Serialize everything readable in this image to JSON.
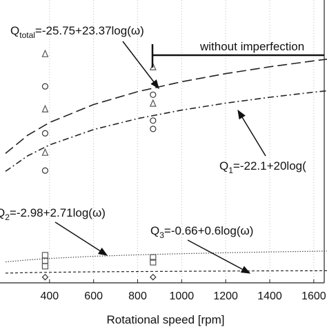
{
  "chart_data": {
    "type": "line",
    "x_label": "Rotational speed [rpm]",
    "xlim": [
      175,
      1660
    ],
    "ylim": [
      -1.5,
      63
    ],
    "xticks": [
      400,
      600,
      800,
      1000,
      1200,
      1400,
      1600
    ],
    "grid": true,
    "x": [
      200,
      300,
      400,
      600,
      800,
      1000,
      1200,
      1400,
      1600,
      1660
    ],
    "series": [
      {
        "color": "#222222",
        "values": [
          28.02,
          32.14,
          35.06,
          39.17,
          42.09,
          44.36,
          46.21,
          47.77,
          49.13,
          49.5
        ]
      },
      {
        "color": "#222222",
        "values": [
          23.92,
          27.44,
          29.94,
          33.46,
          35.96,
          37.9,
          39.48,
          40.82,
          41.98,
          42.3
        ]
      },
      {
        "color": "#444444",
        "values": [
          3.26,
          3.73,
          4.07,
          4.55,
          4.89,
          5.15,
          5.36,
          5.55,
          5.7,
          5.75
        ]
      },
      {
        "color": "#222222",
        "values": [
          0.72,
          0.83,
          0.9,
          1.01,
          1.08,
          1.14,
          1.19,
          1.23,
          1.26,
          1.27
        ]
      }
    ],
    "markers": [
      {
        "marker": "triangle",
        "color": "#555555",
        "x": [
          380,
          380,
          380,
          870,
          870
        ],
        "values": [
          50.7,
          38.1,
          28.2,
          47.7,
          39.4
        ]
      },
      {
        "marker": "circle",
        "color": "#333333",
        "x": [
          380,
          380,
          380,
          870,
          870,
          870
        ],
        "values": [
          43.3,
          32.6,
          24.1,
          41.4,
          35.5,
          33.6
        ]
      },
      {
        "marker": "square",
        "color": "#555555",
        "x": [
          380,
          380,
          380,
          870,
          870
        ],
        "values": [
          4.8,
          3.5,
          2.3,
          4.3,
          3.2
        ]
      },
      {
        "marker": "diamond",
        "color": "#333333",
        "x": [
          380,
          870
        ],
        "values": [
          -0.2,
          -0.2
        ]
      }
    ],
    "annotations": [
      {
        "parts": [
          "Q",
          "total",
          "=-25.75+23.37log(ω)"
        ]
      },
      {
        "parts": [
          "Q",
          "1",
          "=-22.1+20log("
        ]
      },
      {
        "parts": [
          "Q",
          "2",
          "=-2.98+2.71log(ω)"
        ]
      },
      {
        "parts": [
          "Q",
          "3",
          "=-0.66+0.6log(ω)"
        ]
      },
      {
        "parts": [
          "without imperfection"
        ]
      }
    ]
  }
}
